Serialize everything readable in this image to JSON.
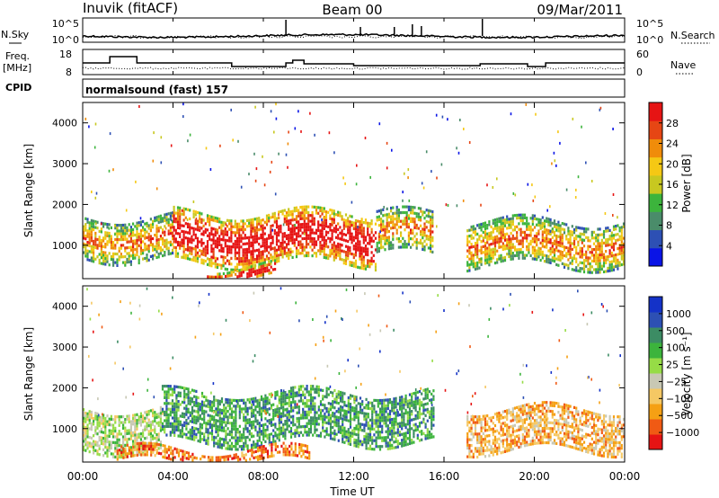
{
  "header": {
    "station": "Inuvik (fitACF)",
    "beam": "Beam 00",
    "date": "09/Mar/2011"
  },
  "summary_panels": {
    "nsky_label": "N.Sky",
    "nsearch_label": "N.Search",
    "noise_ticks_left": [
      "10^5",
      "10^0"
    ],
    "noise_ticks_right": [
      "10^5",
      "10^0"
    ],
    "freq_label_line1": "Freq.",
    "freq_label_line2": "[MHz]",
    "freq_ticks": [
      "18",
      "8"
    ],
    "nave_label": "Nave",
    "nave_ticks": [
      "60",
      "0"
    ],
    "cpid_label": "CPID",
    "cpid_text": "normalsound (fast) 157"
  },
  "x_axis": {
    "label": "Time UT",
    "ticks": [
      "00:00",
      "04:00",
      "08:00",
      "12:00",
      "16:00",
      "20:00",
      "00:00"
    ]
  },
  "colors": {
    "power": [
      "#0a14e6",
      "#2d50b4",
      "#4a8c6a",
      "#3cb43c",
      "#c8c820",
      "#f5c814",
      "#f08c0a",
      "#e64614",
      "#e61414"
    ],
    "velocity": [
      "#e61414",
      "#f05a14",
      "#f5a014",
      "#f5c864",
      "#c8c8b4",
      "#96dc46",
      "#3cb43c",
      "#3c8c64",
      "#2d50b4",
      "#1432c8"
    ]
  },
  "chart_data": [
    {
      "type": "heatmap",
      "title": "",
      "xlabel": "Time UT",
      "ylabel": "Slant Range [km]",
      "x_range_hours": [
        0,
        24
      ],
      "ylim": [
        180,
        4500
      ],
      "y_ticks": [
        1000,
        2000,
        3000,
        4000
      ],
      "colorbar": {
        "label": "Power [dB]",
        "range": [
          0,
          32
        ],
        "ticks": [
          4,
          8,
          12,
          16,
          20,
          24,
          28
        ]
      },
      "parameter": "power",
      "echo_regions": [
        {
          "start_h": 0.0,
          "end_h": 4.0,
          "range_km": [
            700,
            1700
          ],
          "level": "mixed low-high"
        },
        {
          "start_h": 4.0,
          "end_h": 13.0,
          "range_km": [
            600,
            1800
          ],
          "level": "strong 20-30 dB"
        },
        {
          "start_h": 5.5,
          "end_h": 8.5,
          "range_km": [
            200,
            500
          ],
          "level": "strong 20-30 dB"
        },
        {
          "start_h": 13.0,
          "end_h": 15.5,
          "range_km": [
            800,
            1800
          ],
          "level": "moderate 8-20 dB"
        },
        {
          "start_h": 17.0,
          "end_h": 24.0,
          "range_km": [
            500,
            1600
          ],
          "level": "weak-moderate, strong near 23-24h"
        }
      ]
    },
    {
      "type": "heatmap",
      "title": "",
      "xlabel": "Time UT",
      "ylabel": "Slant Range [km]",
      "x_range_hours": [
        0,
        24
      ],
      "ylim": [
        180,
        4500
      ],
      "y_ticks": [
        1000,
        2000,
        3000,
        4000
      ],
      "colorbar": {
        "label": "Velocity [m s⁻¹]",
        "ticks": [
          "1000",
          "500",
          "100",
          "25",
          "−25",
          "−100",
          "−500",
          "−1000"
        ]
      },
      "parameter": "velocity",
      "echo_regions": [
        {
          "start_h": 0.0,
          "end_h": 3.5,
          "range_km": [
            500,
            1500
          ],
          "level": "mixed -500 to 100 m/s"
        },
        {
          "start_h": 3.5,
          "end_h": 15.5,
          "range_km": [
            700,
            1900
          ],
          "level": "100 to 500 m/s"
        },
        {
          "start_h": 1.5,
          "end_h": 10.0,
          "range_km": [
            180,
            500
          ],
          "level": "-100 to -25 m/s"
        },
        {
          "start_h": 17.0,
          "end_h": 24.0,
          "range_km": [
            500,
            1500
          ],
          "level": "mixed -500 to 25 m/s"
        }
      ]
    }
  ]
}
